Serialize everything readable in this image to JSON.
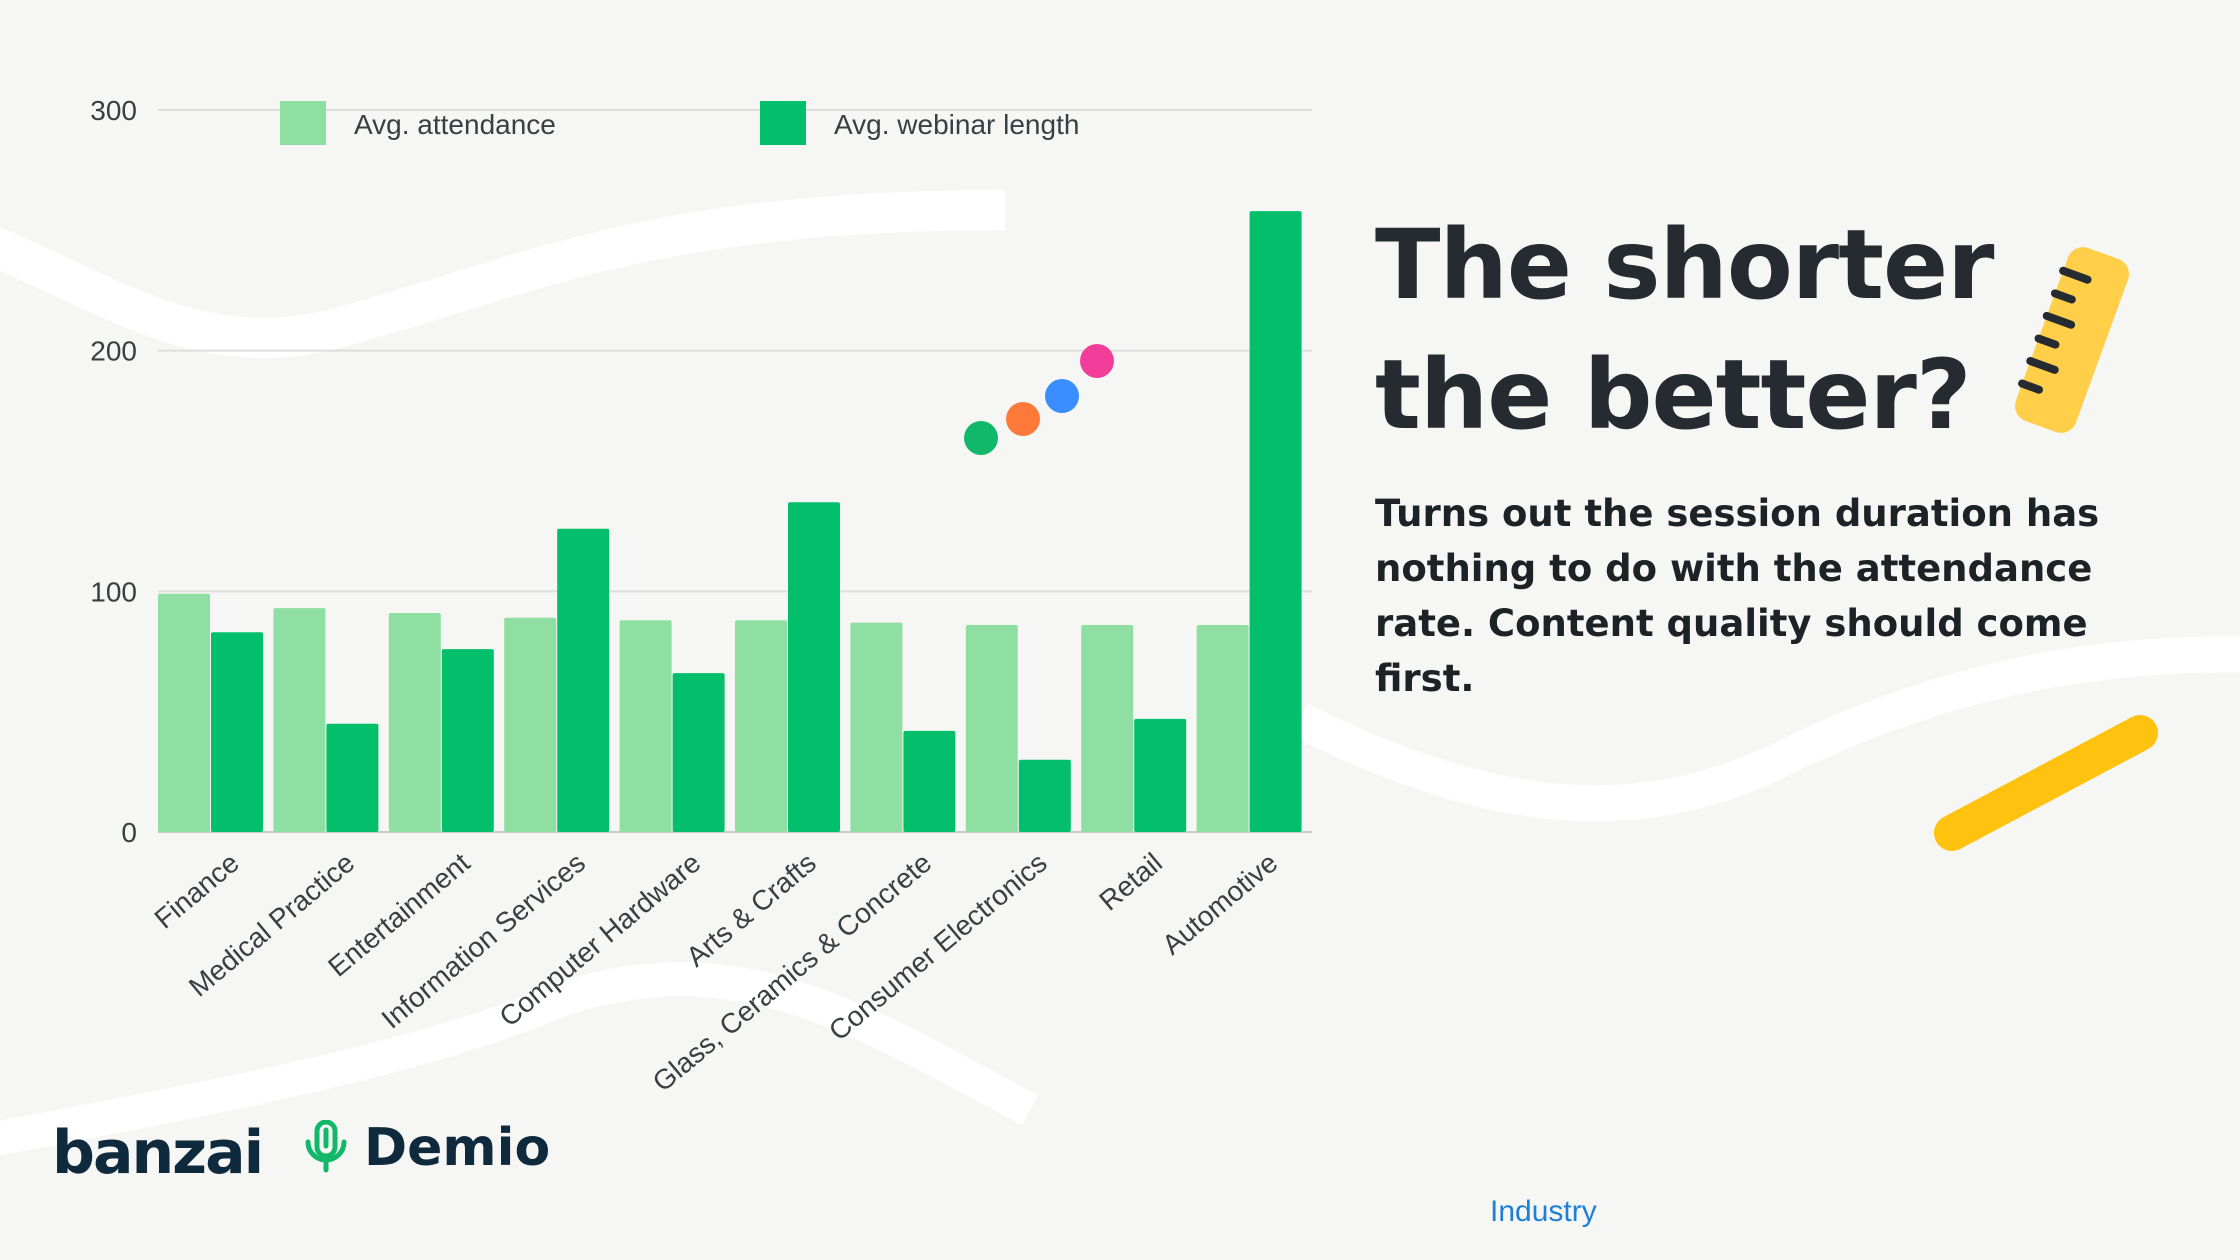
{
  "heading": {
    "line1": "The shorter",
    "line2": "the better?"
  },
  "subtext": "Turns out the session duration has nothing to do with the attendance rate. Content quality should come first.",
  "brands": {
    "banzai": "banzai",
    "demio": "Demio"
  },
  "footnote": "Industry",
  "colors": {
    "attendance": "#8fdfa2",
    "webinar_length": "#03bf6b",
    "heading": "#252b30",
    "dots": [
      "#12b86a",
      "#ff7a3a",
      "#3a8dff",
      "#f23e9a"
    ],
    "ruler": "#ffcf4a",
    "stroke_accent": "#ffc20e"
  },
  "icons": [
    "ruler-icon",
    "demio-microphone-icon",
    "color-dots-decoration",
    "yellow-stroke-decoration"
  ],
  "chart_data": {
    "type": "bar",
    "categories": [
      "Finance",
      "Medical Practice",
      "Entertainment",
      "Information Services",
      "Computer Hardware",
      "Arts & Crafts",
      "Glass, Ceramics & Concrete",
      "Consumer Electronics",
      "Retail",
      "Automotive"
    ],
    "series": [
      {
        "name": "Avg. attendance",
        "values": [
          99,
          93,
          91,
          89,
          88,
          88,
          87,
          86,
          86,
          86
        ]
      },
      {
        "name": "Avg. webinar length",
        "values": [
          83,
          45,
          76,
          126,
          66,
          137,
          42,
          30,
          47,
          258
        ]
      }
    ],
    "yticks": [
      0,
      100,
      200,
      300
    ],
    "ylim": [
      0,
      300
    ],
    "grid": true,
    "legend": "top"
  }
}
